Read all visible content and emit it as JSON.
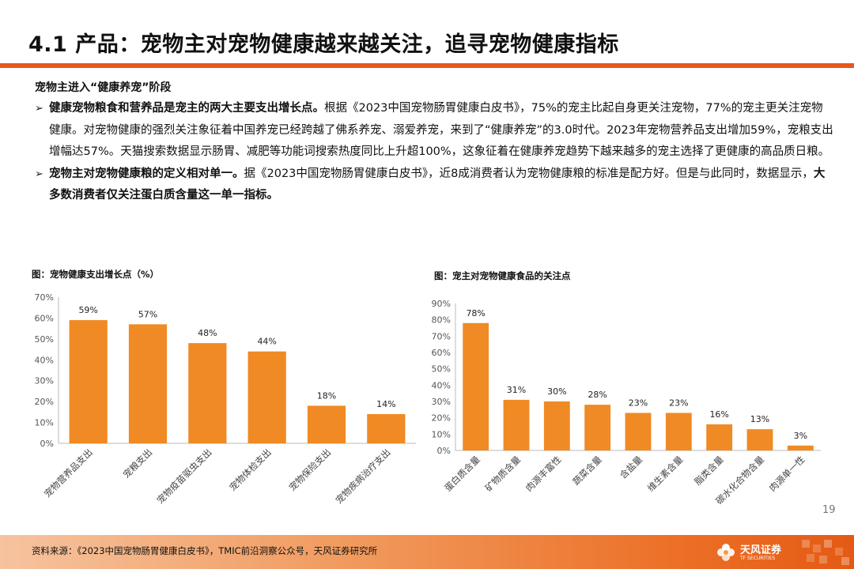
{
  "header": {
    "title": "4.1 产品：宠物主对宠物健康越来越关注，追寻宠物健康指标"
  },
  "section": {
    "heading": "宠物主进入“健康养宠”阶段"
  },
  "bullets": [
    {
      "marker": "➢",
      "bold": "健康宠物粮食和营养品是宠主的两大主要支出增长点。",
      "text": "根据《2023中国宠物肠胃健康白皮书》，75%的宠主比起自身更关注宠物，77%的宠主更关注宠物健康。对宠物健康的强烈关注象征着中国养宠已经跨越了佛系养宠、溺爱养宠，来到了“健康养宠”的3.0时代。2023年宠物营养品支出增加59%，宠粮支出增幅达57%。天猫搜索数据显示肠胃、减肥等功能词搜索热度同比上升超100%，这象征着在健康养宠趋势下越来越多的宠主选择了更健康的高品质日粮。"
    },
    {
      "marker": "➢",
      "bold": "宠物主对宠物健康粮的定义相对单一。",
      "text": "据《2023中国宠物肠胃健康白皮书》，近8成消费者认为宠物健康粮的标准是配方好。但是与此同时，数据显示，",
      "bold2": "大多数消费者仅关注蛋白质含量这一单一指标。"
    }
  ],
  "chart_left_title": "图：宠物健康支出增长点（%）",
  "chart_right_title": "图：宠主对宠物健康食品的关注点",
  "chart_data": [
    {
      "type": "bar",
      "title": "图：宠物健康支出增长点（%）",
      "categories": [
        "宠物营养品支出",
        "宠粮支出",
        "宠物疫苗驱虫支出",
        "宠物体检支出",
        "宠物保险支出",
        "宠物疾病治疗支出"
      ],
      "values": [
        59,
        57,
        48,
        44,
        18,
        14
      ],
      "data_labels": [
        "59%",
        "57%",
        "48%",
        "44%",
        "18%",
        "14%"
      ],
      "y_ticks": [
        "0%",
        "10%",
        "20%",
        "30%",
        "40%",
        "50%",
        "60%",
        "70%"
      ],
      "ylim": [
        0,
        70
      ],
      "color": "#f08a24"
    },
    {
      "type": "bar",
      "title": "图：宠主对宠物健康食品的关注点",
      "categories": [
        "蛋白质含量",
        "矿物质含量",
        "肉源丰富性",
        "蔬菜含量",
        "含盐量",
        "维生素含量",
        "脂类含量",
        "碳水化合物含量",
        "肉源单一性"
      ],
      "values": [
        78,
        31,
        30,
        28,
        23,
        23,
        16,
        13,
        3
      ],
      "data_labels": [
        "78%",
        "31%",
        "30%",
        "28%",
        "23%",
        "23%",
        "16%",
        "13%",
        "3%"
      ],
      "y_ticks": [
        "0%",
        "10%",
        "20%",
        "30%",
        "40%",
        "50%",
        "60%",
        "70%",
        "80%",
        "90%"
      ],
      "ylim": [
        0,
        90
      ],
      "color": "#f08a24"
    }
  ],
  "page_number": "19",
  "footer": {
    "source": "资料来源：《2023中国宠物肠胃健康白皮书》，TMIC前沿洞察公众号，天风证券研究所",
    "logo_name": "天风证券",
    "logo_sub": "TF SECURITIES"
  },
  "colors": {
    "accent": "#e8581c",
    "bar": "#f08a24"
  }
}
